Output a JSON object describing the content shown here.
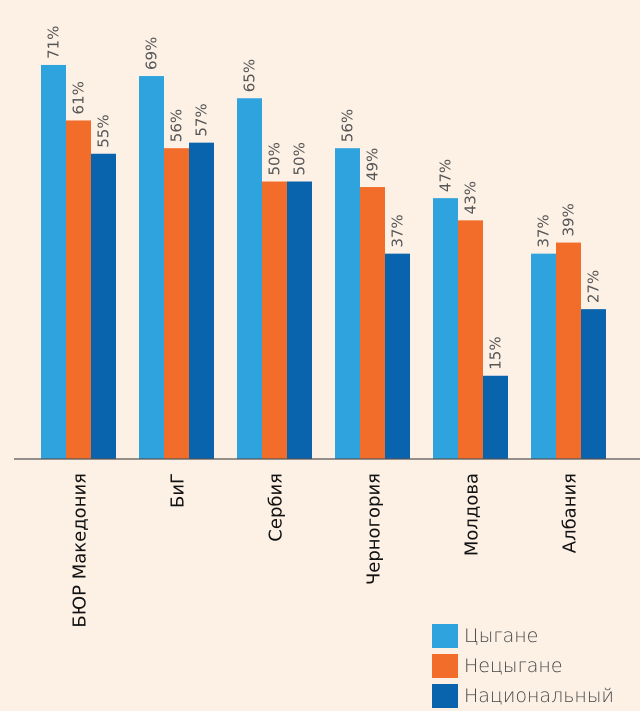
{
  "chart_data": {
    "type": "bar",
    "categories": [
      "БЮР Македония",
      "БиГ",
      "Сербия",
      "Черногория",
      "Молдова",
      "Албания"
    ],
    "series": [
      {
        "name": "Цыгане",
        "values": [
          71,
          69,
          65,
          56,
          47,
          37
        ],
        "labels": [
          "71%",
          "69%",
          "65%",
          "56%",
          "47%",
          "37%"
        ],
        "color": "#2ea3dd"
      },
      {
        "name": "Нецыгане",
        "values": [
          61,
          56,
          50,
          49,
          43,
          39
        ],
        "labels": [
          "61%",
          "56%",
          "50%",
          "49%",
          "43%",
          "39%"
        ],
        "color": "#f26d2a"
      },
      {
        "name": "Национальный",
        "values": [
          55,
          57,
          50,
          37,
          15,
          27
        ],
        "labels": [
          "55%",
          "57%",
          "50%",
          "37%",
          "15%",
          "27%"
        ],
        "color": "#0a63ad"
      }
    ],
    "ylim": [
      0,
      100
    ],
    "grid": false,
    "legend": "bottom-right"
  }
}
